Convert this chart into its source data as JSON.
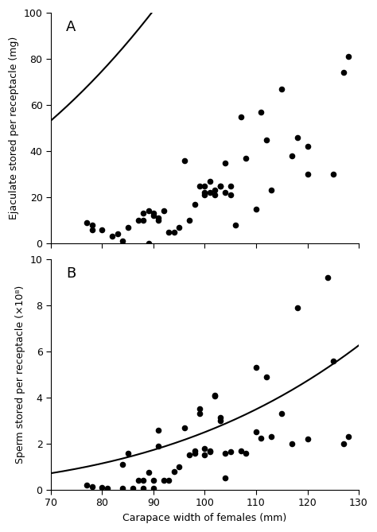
{
  "panel_A": {
    "label": "A",
    "x": [
      77,
      78,
      78,
      80,
      82,
      83,
      84,
      85,
      87,
      88,
      88,
      89,
      89,
      90,
      90,
      91,
      91,
      92,
      93,
      94,
      95,
      96,
      97,
      98,
      99,
      100,
      100,
      100,
      101,
      101,
      102,
      102,
      103,
      103,
      104,
      104,
      105,
      105,
      106,
      107,
      108,
      110,
      111,
      112,
      113,
      115,
      117,
      118,
      120,
      120,
      125,
      127,
      128
    ],
    "y": [
      9,
      8,
      6,
      6,
      3,
      4,
      1,
      7,
      10,
      10,
      13,
      14,
      0,
      12,
      13,
      11,
      10,
      14,
      5,
      5,
      7,
      36,
      10,
      17,
      25,
      22,
      21,
      25,
      22,
      27,
      21,
      23,
      25,
      25,
      22,
      35,
      25,
      21,
      8,
      55,
      37,
      15,
      57,
      45,
      23,
      67,
      38,
      46,
      42,
      30,
      30,
      74,
      81
    ],
    "ylabel": "Ejaculate stored per receptacle (mg)",
    "ylim": [
      0,
      100
    ],
    "yticks": [
      0,
      20,
      40,
      60,
      80,
      100
    ],
    "curve_a": 0.00105,
    "curve_b": 2.55
  },
  "panel_B": {
    "label": "B",
    "x": [
      77,
      78,
      80,
      81,
      84,
      84,
      85,
      86,
      87,
      88,
      88,
      89,
      90,
      90,
      91,
      91,
      92,
      93,
      94,
      95,
      96,
      97,
      98,
      98,
      99,
      99,
      100,
      100,
      101,
      101,
      102,
      102,
      103,
      103,
      104,
      104,
      105,
      107,
      108,
      110,
      110,
      111,
      112,
      113,
      115,
      117,
      118,
      120,
      124,
      125,
      127,
      128
    ],
    "y": [
      0.2,
      0.15,
      0.1,
      0.05,
      1.1,
      0.05,
      1.6,
      0.05,
      0.4,
      0.05,
      0.4,
      0.75,
      0.05,
      0.4,
      1.9,
      2.6,
      0.4,
      0.4,
      0.8,
      1.0,
      2.7,
      1.5,
      1.6,
      1.7,
      3.3,
      3.5,
      1.5,
      1.8,
      1.7,
      1.65,
      4.1,
      4.05,
      3.0,
      3.15,
      1.6,
      0.5,
      1.65,
      1.7,
      1.6,
      2.5,
      5.3,
      2.25,
      4.9,
      2.3,
      3.3,
      2.0,
      7.9,
      2.2,
      9.2,
      5.6,
      2.0,
      2.3
    ],
    "ylabel": "Sperm stored per receptacle (×10⁸)",
    "ylim": [
      0,
      10
    ],
    "yticks": [
      0,
      2,
      4,
      6,
      8,
      10
    ],
    "curve_a": 2.5e-07,
    "curve_b": 3.5
  },
  "xlabel": "Carapace width of females (mm)",
  "xlim": [
    70,
    130
  ],
  "xticks": [
    70,
    80,
    90,
    100,
    110,
    120,
    130
  ],
  "background_color": "#ffffff",
  "dot_color": "#000000",
  "line_color": "#000000",
  "dot_size": 30,
  "line_width": 1.5
}
